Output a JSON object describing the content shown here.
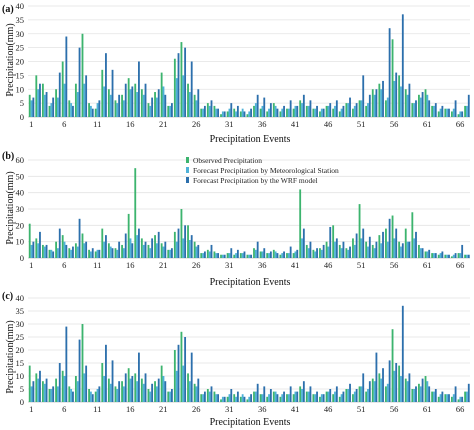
{
  "colors": {
    "observed": "#3cb46e",
    "meteorological": "#4fb2d8",
    "wrf": "#2c6fac",
    "grid": "#e3e3e3",
    "axis": "#bdbdbd"
  },
  "legend": {
    "observed": "Observed Precipitation",
    "meteorological": "Forecast Precipitation by Meteorological Station",
    "wrf": "Forecast Precipitation by the WRF model"
  },
  "chart_data": [
    {
      "type": "bar",
      "panel_label": "(a)",
      "xlabel": "Precipitation Events",
      "ylabel": "Precipitation(mm)",
      "ylim": [
        0,
        40
      ],
      "yticks": [
        0,
        5,
        10,
        15,
        20,
        25,
        30,
        35,
        40
      ],
      "xticks": [
        1,
        6,
        11,
        16,
        21,
        26,
        31,
        36,
        41,
        46,
        51,
        56,
        61,
        66
      ],
      "series": [
        {
          "name": "Observed Precipitation",
          "values": [
            8,
            15,
            12,
            4,
            10,
            20,
            6,
            12,
            30,
            5,
            3,
            17,
            10,
            6,
            8,
            14,
            12,
            10,
            5,
            9,
            16,
            4,
            21,
            27,
            12,
            8,
            3,
            5,
            4,
            1,
            2,
            3,
            2,
            1,
            4,
            3,
            2,
            5,
            2,
            3,
            3,
            6,
            4,
            3,
            2,
            4,
            3,
            2,
            5,
            3,
            6,
            4,
            10,
            12,
            6,
            28,
            15,
            10,
            5,
            8,
            10,
            4,
            2,
            3,
            2,
            1,
            4
          ]
        },
        {
          "name": "Forecast Precipitation by Meteorological Station",
          "values": [
            6,
            10,
            8,
            5,
            7,
            12,
            5,
            9,
            12,
            4,
            5,
            11,
            8,
            5,
            6,
            10,
            9,
            8,
            4,
            7,
            11,
            4,
            14,
            15,
            9,
            6,
            3,
            4,
            3,
            2,
            3,
            2,
            3,
            2,
            5,
            4,
            3,
            4,
            3,
            3,
            4,
            5,
            4,
            3,
            3,
            4,
            4,
            3,
            5,
            4,
            6,
            5,
            8,
            10,
            7,
            13,
            11,
            8,
            5,
            7,
            8,
            4,
            3,
            3,
            3,
            2,
            4
          ]
        },
        {
          "name": "Forecast Precipitation by the WRF model",
          "values": [
            7,
            12,
            9,
            7,
            16,
            29,
            4,
            25,
            15,
            3,
            6,
            23,
            17,
            8,
            12,
            11,
            20,
            12,
            7,
            10,
            8,
            5,
            23,
            25,
            20,
            10,
            4,
            6,
            3,
            2,
            5,
            4,
            2,
            3,
            8,
            7,
            5,
            3,
            4,
            6,
            4,
            8,
            6,
            4,
            3,
            5,
            6,
            4,
            7,
            5,
            15,
            8,
            10,
            13,
            32,
            16,
            37,
            12,
            6,
            9,
            6,
            5,
            4,
            3,
            6,
            2,
            8
          ]
        }
      ]
    },
    {
      "type": "bar",
      "panel_label": "(b)",
      "xlabel": "Precipitation Events",
      "ylabel": "Precipitation(mm)",
      "ylim": [
        0,
        60
      ],
      "yticks": [
        0,
        10,
        20,
        30,
        40,
        50,
        60
      ],
      "xticks": [
        1,
        6,
        11,
        16,
        21,
        26,
        31,
        36,
        41,
        46,
        51,
        56,
        61,
        66
      ],
      "series": [
        {
          "name": "Observed Precipitation",
          "values": [
            21,
            12,
            8,
            5,
            10,
            14,
            6,
            9,
            15,
            5,
            4,
            18,
            9,
            6,
            8,
            27,
            55,
            12,
            8,
            14,
            9,
            5,
            16,
            30,
            20,
            10,
            3,
            5,
            4,
            2,
            3,
            2,
            3,
            2,
            6,
            4,
            3,
            5,
            2,
            3,
            3,
            42,
            8,
            5,
            6,
            10,
            20,
            8,
            6,
            12,
            33,
            10,
            8,
            14,
            18,
            26,
            10,
            18,
            28,
            8,
            4,
            3,
            2,
            2,
            1,
            3,
            2
          ]
        },
        {
          "name": "Forecast Precipitation by Meteorological Station",
          "values": [
            8,
            9,
            7,
            5,
            6,
            10,
            5,
            7,
            9,
            4,
            5,
            10,
            7,
            5,
            6,
            12,
            14,
            8,
            6,
            9,
            7,
            5,
            10,
            12,
            11,
            7,
            3,
            4,
            3,
            2,
            3,
            3,
            3,
            2,
            5,
            4,
            3,
            4,
            3,
            3,
            4,
            12,
            6,
            4,
            5,
            7,
            10,
            6,
            5,
            8,
            12,
            7,
            6,
            9,
            10,
            12,
            7,
            10,
            12,
            6,
            4,
            3,
            3,
            2,
            2,
            3,
            2
          ]
        },
        {
          "name": "Forecast Precipitation by the WRF model",
          "values": [
            10,
            16,
            8,
            4,
            18,
            8,
            7,
            24,
            10,
            6,
            5,
            14,
            6,
            10,
            15,
            9,
            18,
            10,
            12,
            16,
            10,
            6,
            18,
            20,
            14,
            8,
            4,
            8,
            3,
            2,
            6,
            5,
            4,
            2,
            10,
            6,
            4,
            3,
            4,
            7,
            5,
            18,
            10,
            6,
            8,
            19,
            12,
            10,
            7,
            15,
            18,
            13,
            10,
            16,
            24,
            18,
            9,
            10,
            16,
            6,
            5,
            3,
            4,
            2,
            3,
            8,
            2
          ]
        }
      ]
    },
    {
      "type": "bar",
      "panel_label": "(c)",
      "xlabel": "Precipitation Events",
      "ylabel": "Precipitation(mm)",
      "ylim": [
        0,
        40
      ],
      "yticks": [
        0,
        5,
        10,
        15,
        20,
        25,
        30,
        35,
        40
      ],
      "xticks": [
        1,
        6,
        11,
        16,
        21,
        26,
        31,
        36,
        41,
        46,
        51,
        56,
        61,
        66
      ],
      "series": [
        {
          "name": "Observed Precipitation",
          "values": [
            14,
            11,
            8,
            5,
            9,
            12,
            6,
            10,
            30,
            5,
            4,
            15,
            9,
            6,
            8,
            13,
            11,
            9,
            5,
            8,
            14,
            4,
            20,
            27,
            11,
            7,
            3,
            5,
            4,
            1,
            2,
            3,
            2,
            1,
            4,
            3,
            2,
            4,
            2,
            3,
            3,
            6,
            4,
            3,
            2,
            4,
            3,
            2,
            5,
            3,
            6,
            4,
            9,
            11,
            6,
            28,
            14,
            9,
            5,
            7,
            10,
            4,
            2,
            3,
            2,
            1,
            4
          ]
        },
        {
          "name": "Forecast Precipitation by Meteorological Station",
          "values": [
            6,
            9,
            7,
            5,
            6,
            10,
            5,
            8,
            11,
            4,
            5,
            10,
            7,
            5,
            6,
            9,
            8,
            7,
            4,
            6,
            10,
            4,
            12,
            14,
            8,
            6,
            3,
            4,
            3,
            2,
            3,
            2,
            3,
            2,
            4,
            3,
            3,
            4,
            3,
            3,
            4,
            5,
            4,
            3,
            3,
            4,
            4,
            3,
            5,
            4,
            6,
            5,
            8,
            9,
            7,
            12,
            10,
            8,
            5,
            6,
            8,
            4,
            3,
            3,
            3,
            2,
            4
          ]
        },
        {
          "name": "Forecast Precipitation by the WRF model",
          "values": [
            8,
            12,
            9,
            6,
            15,
            29,
            4,
            24,
            14,
            3,
            6,
            22,
            16,
            8,
            11,
            10,
            19,
            11,
            7,
            9,
            8,
            5,
            22,
            25,
            19,
            9,
            4,
            6,
            3,
            2,
            5,
            4,
            2,
            3,
            7,
            6,
            5,
            3,
            4,
            6,
            4,
            8,
            6,
            4,
            3,
            5,
            6,
            4,
            7,
            5,
            11,
            8,
            19,
            13,
            16,
            15,
            37,
            11,
            6,
            9,
            6,
            5,
            4,
            3,
            6,
            2,
            7
          ]
        }
      ]
    }
  ]
}
